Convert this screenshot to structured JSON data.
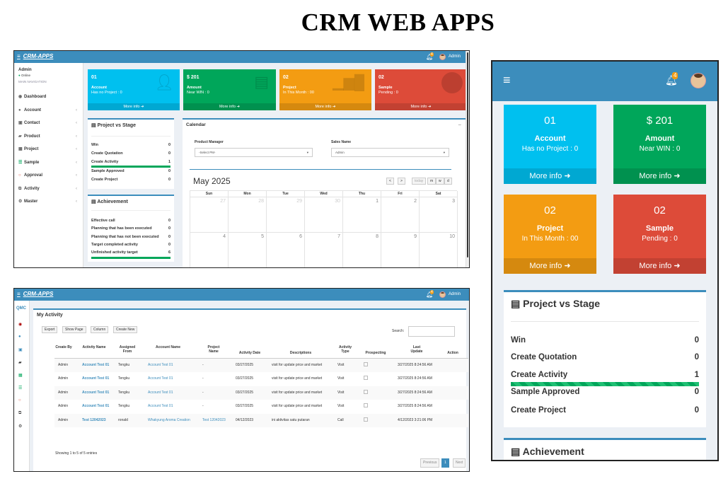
{
  "page_title": "CRM WEB APPS",
  "app": {
    "brand": "CRM-APPS",
    "user": "Admin",
    "notif_count": "4"
  },
  "sidebar": {
    "user_name": "Admin",
    "status": "Online",
    "section": "MAIN NAVIGATION",
    "items": [
      {
        "label": "Dashboard",
        "icon": "dashboard-icon"
      },
      {
        "label": "Account",
        "icon": "users-icon"
      },
      {
        "label": "Contact",
        "icon": "contact-icon"
      },
      {
        "label": "Product",
        "icon": "book-icon"
      },
      {
        "label": "Project",
        "icon": "table-icon"
      },
      {
        "label": "Sample",
        "icon": "list-icon"
      },
      {
        "label": "Approval",
        "icon": "circle-icon"
      },
      {
        "label": "Activity",
        "icon": "clone-icon"
      },
      {
        "label": "Master",
        "icon": "gear-icon"
      }
    ]
  },
  "stats": [
    {
      "num": "01",
      "title": "Account",
      "sub": "Has no Project : 0",
      "more": "More info",
      "color": "#00c0ef"
    },
    {
      "num": "$ 201",
      "title": "Amount",
      "sub": "Near WIN : 0",
      "more": "More info",
      "color": "#00a65a"
    },
    {
      "num": "02",
      "title": "Project",
      "sub": "In This Month : 00",
      "more": "More info",
      "color": "#f39c12"
    },
    {
      "num": "02",
      "title": "Sample",
      "sub": "Pending : 0",
      "more": "More info",
      "color": "#dd4b39"
    }
  ],
  "mobile_stats": [
    {
      "sub": "Has no Project : 0"
    },
    {
      "sub": "Near WIN : 0"
    },
    {
      "sub": "In This Month : 00"
    },
    {
      "sub": "Pending : 0"
    }
  ],
  "project_stage": {
    "title": "Project vs Stage",
    "rows": [
      {
        "label": "Win",
        "value": "0"
      },
      {
        "label": "Create Quotation",
        "value": "0"
      },
      {
        "label": "Create Activity",
        "value": "1"
      },
      {
        "label": "Sample Approved",
        "value": "0"
      },
      {
        "label": "Create Project",
        "value": "0"
      }
    ]
  },
  "achievement": {
    "title": "Achievement",
    "rows": [
      {
        "label": "Effective call",
        "value": "0"
      },
      {
        "label": "Planning that has been executed",
        "value": "0"
      },
      {
        "label": "Planning that has not been executed",
        "value": "0"
      },
      {
        "label": "Target completed activity",
        "value": "0"
      },
      {
        "label": "Unfinished activity target",
        "value": "6"
      }
    ]
  },
  "calendar": {
    "title": "Calendar",
    "collapse": "−",
    "pm_label": "Product Manager",
    "pm_value": "-Select PM-",
    "sales_label": "Sales Name",
    "sales_value": "Admin",
    "month": "May 2025",
    "prev": "<",
    "next": ">",
    "today": "today",
    "views": [
      "m",
      "w",
      "d"
    ],
    "days": [
      "Sun",
      "Mon",
      "Tue",
      "Wed",
      "Thu",
      "Fri",
      "Sat"
    ],
    "week1": [
      "27",
      "28",
      "29",
      "30",
      "1",
      "2",
      "3"
    ],
    "week2": [
      "4",
      "5",
      "6",
      "7",
      "8",
      "9",
      "10"
    ]
  },
  "activity": {
    "title": "My Activity",
    "buttons": [
      "Export",
      "Show Page",
      "Column",
      "Create New"
    ],
    "search_label": "Search:",
    "headers": [
      "Create By",
      "Activity Name",
      "Assigned From",
      "Account Name",
      "Project Name",
      "Activity Date",
      "Descriptions",
      "Activity Type",
      "Prospecting",
      "Last Update",
      "Action"
    ],
    "rows": [
      [
        "Admin",
        "Account Test 01",
        "Tengku",
        "Account Test 01",
        "-",
        "03/27/2025",
        "visit for update price and market",
        "Visit",
        "3/27/2025 8:24:56 AM"
      ],
      [
        "Admin",
        "Account Test 01",
        "Tengku",
        "Account Test 01",
        "-",
        "03/27/2025",
        "visit for update price and market",
        "Visit",
        "3/27/2025 8:24:56 AM"
      ],
      [
        "Admin",
        "Account Test 01",
        "Tengku",
        "Account Test 01",
        "-",
        "03/27/2025",
        "visit for update price and market",
        "Visit",
        "3/27/2025 8:24:56 AM"
      ],
      [
        "Admin",
        "Account Test 01",
        "Tengku",
        "Account Test 01",
        "-",
        "03/27/2025",
        "visit for update price and market",
        "Visit",
        "3/27/2025 8:24:56 AM"
      ],
      [
        "Admin",
        "Test 12042023",
        "ronald",
        "Whakyung Aroma Creation",
        "Test 12042023",
        "04/12/2023",
        "ini aktivitas satu putaran",
        "Call",
        "4/12/2023 3:21:06 PM"
      ]
    ],
    "footer": "Showing 1 to 5 of 5 entries",
    "pager": {
      "prev": "Previous",
      "page": "1",
      "next": "Next"
    }
  }
}
